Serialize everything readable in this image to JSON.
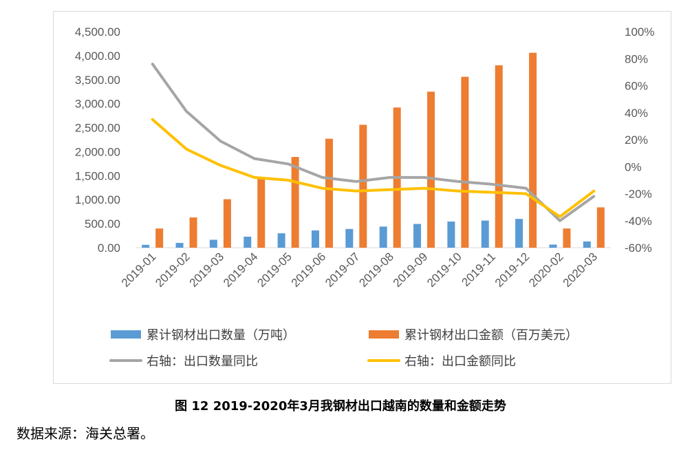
{
  "chart_data": {
    "type": "bar+line",
    "categories": [
      "2019-01",
      "2019-02",
      "2019-03",
      "2019-04",
      "2019-05",
      "2019-06",
      "2019-07",
      "2019-08",
      "2019-09",
      "2019-10",
      "2019-11",
      "2019-12",
      "2020-02",
      "2020-03"
    ],
    "bar_series": [
      {
        "name": "累计钢材出口数量（万吨）",
        "color": "#5B9BD5",
        "values": [
          60,
          100,
          165,
          230,
          300,
          360,
          390,
          440,
          495,
          545,
          565,
          600,
          65,
          130
        ]
      },
      {
        "name": "累计钢材出口金额（百万美元）",
        "color": "#ED7D31",
        "values": [
          400,
          630,
          1010,
          1450,
          1890,
          2270,
          2560,
          2920,
          3250,
          3560,
          3800,
          4060,
          400,
          840
        ]
      }
    ],
    "line_series": [
      {
        "name": "右轴：出口数量同比",
        "color": "#A5A5A5",
        "axis": "right",
        "values": [
          76,
          41,
          19,
          6,
          2,
          -8,
          -11,
          -8,
          -8,
          -11,
          -13,
          -16,
          -40,
          -22
        ]
      },
      {
        "name": "右轴：出口金额同比",
        "color": "#FFC000",
        "axis": "right",
        "values": [
          35,
          13,
          1,
          -8,
          -10,
          -16,
          -18,
          -17,
          -16,
          -18,
          -19,
          -20,
          -37,
          -18
        ]
      }
    ],
    "left_axis": {
      "min": 0,
      "max": 4500,
      "step": 500,
      "tick_labels": [
        "0.00",
        "500.00",
        "1,000.00",
        "1,500.00",
        "2,000.00",
        "2,500.00",
        "3,000.00",
        "3,500.00",
        "4,000.00",
        "4,500.00"
      ]
    },
    "right_axis": {
      "min": -60,
      "max": 100,
      "step": 20,
      "tick_labels": [
        "-60%",
        "-40%",
        "-20%",
        "0%",
        "20%",
        "40%",
        "60%",
        "80%",
        "100%"
      ]
    },
    "legend_position": "bottom",
    "grid": false
  },
  "caption": "图 12 2019-2020年3月我钢材出口越南的数量和金额走势",
  "source": "数据来源：海关总署。"
}
